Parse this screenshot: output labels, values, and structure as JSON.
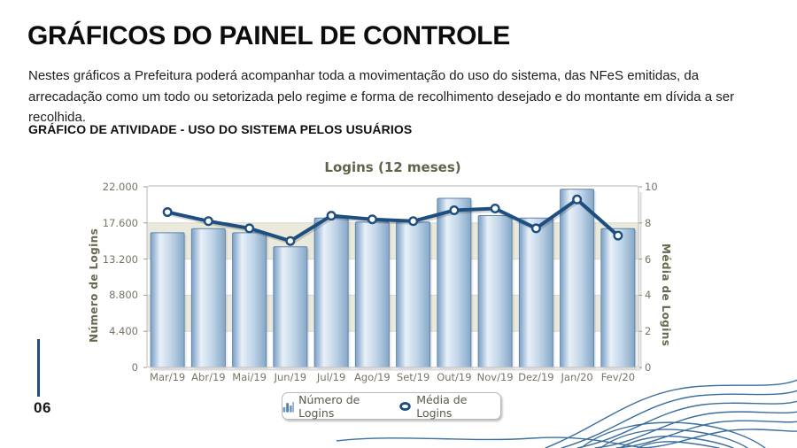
{
  "page": {
    "title": "GRÁFICOS DO PAINEL DE CONTROLE",
    "paragraph": "Nestes gráficos a Prefeitura poderá acompanhar toda a movimentação do uso do sistema, das NFeS emitidas, da arrecadação como um todo ou setorizada pelo regime e forma de recolhimento desejado e do montante em dívida a ser recolhida.",
    "section_heading": "GRÁFICO DE ATIVIDADE - USO DO SISTEMA PELOS USUÁRIOS",
    "page_number": "06"
  },
  "colors": {
    "accent_navy": "#1f4e79",
    "wave_blue": "#3a6fa0",
    "bar_border": "#5c84ab",
    "bar_grad_edge": "#86a7c8",
    "bar_grad_light": "#e8f0f8",
    "bar_grad_mid": "#c2d6e8",
    "bar_grad_dark": "#8fafd0",
    "line_color": "#1d4e80",
    "marker_fill": "#ffffff",
    "band_beige": "#ebe9dc",
    "band_white": "#ffffff",
    "grid_line": "#d8d8cc",
    "plot_border": "#c4c4c4",
    "tick_text": "#7a7464",
    "chart_title_text": "#63634c"
  },
  "chart_data": {
    "type": "bar",
    "title": "Logins (12 meses)",
    "categories": [
      "Mar/19",
      "Abr/19",
      "Mai/19",
      "Jun/19",
      "Jul/19",
      "Ago/19",
      "Set/19",
      "Out/19",
      "Nov/19",
      "Dez/19",
      "Jan/20",
      "Fev/20"
    ],
    "series": [
      {
        "name": "Número de Logins",
        "type": "bar",
        "axis": "left",
        "values": [
          16400,
          16900,
          16400,
          14700,
          18200,
          17700,
          17700,
          20600,
          18500,
          18200,
          21700,
          16900
        ]
      },
      {
        "name": "Média de Logins",
        "type": "line",
        "axis": "right",
        "values": [
          8.6,
          8.1,
          7.7,
          7.0,
          8.4,
          8.2,
          8.1,
          8.7,
          8.8,
          7.7,
          9.3,
          7.3
        ]
      }
    ],
    "left_axis": {
      "label": "Número de Logins",
      "ticks": [
        "22.000",
        "17.600",
        "13.200",
        "8.800",
        "4.400",
        "0"
      ],
      "min": 0,
      "max": 22000
    },
    "right_axis": {
      "label": "Média de Logins",
      "ticks": [
        "10",
        "8",
        "6",
        "4",
        "2",
        "0"
      ],
      "min": 0,
      "max": 10
    },
    "legend_position": "bottom",
    "grid": true
  }
}
